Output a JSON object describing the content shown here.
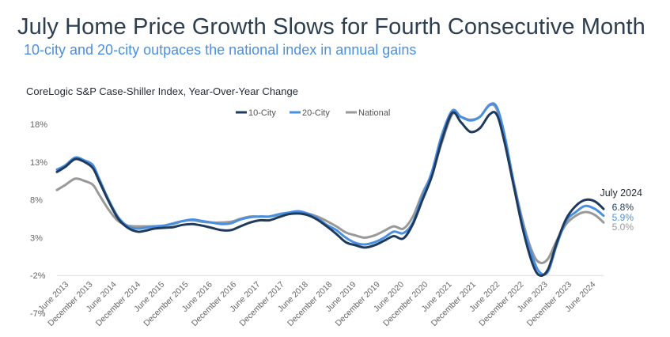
{
  "title": "July Home Price Growth Slows for Fourth Consecutive Month",
  "subtitle": "10-city and 20-city outpaces the national index in annual gains",
  "chart_data": {
    "type": "line",
    "title": "CoreLogic S&P Case-Shiller Index, Year-Over-Year Change",
    "xlabel": "",
    "ylabel": "",
    "ylim": [
      -7,
      20
    ],
    "y_ticks": [
      -7,
      -2,
      3,
      8,
      13,
      18
    ],
    "y_tick_labels": [
      "-7%",
      "-2%",
      "3%",
      "8%",
      "13%",
      "18%"
    ],
    "x_ticks": [
      {
        "label": "June 2013",
        "x": 2013.42
      },
      {
        "label": "December 2013",
        "x": 2013.92
      },
      {
        "label": "June 2014",
        "x": 2014.42
      },
      {
        "label": "December 2014",
        "x": 2014.92
      },
      {
        "label": "June 2015",
        "x": 2015.42
      },
      {
        "label": "December 2015",
        "x": 2015.92
      },
      {
        "label": "June 2016",
        "x": 2016.42
      },
      {
        "label": "December 2016",
        "x": 2016.92
      },
      {
        "label": "June 2017",
        "x": 2017.42
      },
      {
        "label": "December 2017",
        "x": 2017.92
      },
      {
        "label": "June 2018",
        "x": 2018.42
      },
      {
        "label": "December 2018",
        "x": 2018.92
      },
      {
        "label": "June 2019",
        "x": 2019.42
      },
      {
        "label": "December 2019",
        "x": 2019.92
      },
      {
        "label": "June 2020",
        "x": 2020.42
      },
      {
        "label": "December 2020",
        "x": 2020.92
      },
      {
        "label": "June 2021",
        "x": 2021.42
      },
      {
        "label": "December 2021",
        "x": 2021.92
      },
      {
        "label": "June 2022",
        "x": 2022.42
      },
      {
        "label": "December 2022",
        "x": 2022.92
      },
      {
        "label": "June 2023",
        "x": 2023.42
      },
      {
        "label": "December 2023",
        "x": 2023.92
      },
      {
        "label": "June 2024",
        "x": 2024.42
      }
    ],
    "legend": [
      "10-City",
      "20-City",
      "National"
    ],
    "series": [
      {
        "name": "10-City",
        "color": "#1f3a5c",
        "points": [
          [
            2013.17,
            11.7
          ],
          [
            2013.35,
            12.4
          ],
          [
            2013.55,
            13.4
          ],
          [
            2013.75,
            13.0
          ],
          [
            2013.92,
            12.2
          ],
          [
            2014.05,
            10.5
          ],
          [
            2014.25,
            7.8
          ],
          [
            2014.45,
            5.5
          ],
          [
            2014.65,
            4.3
          ],
          [
            2014.85,
            3.8
          ],
          [
            2015.0,
            3.9
          ],
          [
            2015.2,
            4.2
          ],
          [
            2015.4,
            4.3
          ],
          [
            2015.6,
            4.4
          ],
          [
            2015.8,
            4.7
          ],
          [
            2016.0,
            4.8
          ],
          [
            2016.2,
            4.6
          ],
          [
            2016.4,
            4.3
          ],
          [
            2016.6,
            4.0
          ],
          [
            2016.8,
            4.0
          ],
          [
            2017.0,
            4.5
          ],
          [
            2017.2,
            5.0
          ],
          [
            2017.4,
            5.3
          ],
          [
            2017.6,
            5.3
          ],
          [
            2017.8,
            5.7
          ],
          [
            2018.0,
            6.1
          ],
          [
            2018.2,
            6.2
          ],
          [
            2018.4,
            6.0
          ],
          [
            2018.6,
            5.4
          ],
          [
            2018.8,
            4.5
          ],
          [
            2019.0,
            3.5
          ],
          [
            2019.2,
            2.4
          ],
          [
            2019.4,
            2.0
          ],
          [
            2019.6,
            1.7
          ],
          [
            2019.8,
            2.0
          ],
          [
            2020.0,
            2.6
          ],
          [
            2020.2,
            3.2
          ],
          [
            2020.4,
            2.9
          ],
          [
            2020.6,
            4.8
          ],
          [
            2020.8,
            8.0
          ],
          [
            2021.0,
            11.2
          ],
          [
            2021.2,
            15.8
          ],
          [
            2021.42,
            19.5
          ],
          [
            2021.6,
            18.3
          ],
          [
            2021.8,
            17.0
          ],
          [
            2022.0,
            17.5
          ],
          [
            2022.2,
            19.3
          ],
          [
            2022.35,
            19.3
          ],
          [
            2022.5,
            16.0
          ],
          [
            2022.7,
            10.0
          ],
          [
            2022.9,
            4.0
          ],
          [
            2023.1,
            -0.5
          ],
          [
            2023.25,
            -2.0
          ],
          [
            2023.42,
            -1.2
          ],
          [
            2023.6,
            2.3
          ],
          [
            2023.8,
            5.5
          ],
          [
            2024.0,
            7.2
          ],
          [
            2024.2,
            8.0
          ],
          [
            2024.4,
            7.8
          ],
          [
            2024.58,
            6.8
          ]
        ]
      },
      {
        "name": "20-City",
        "color": "#4a90e2",
        "points": [
          [
            2013.17,
            12.0
          ],
          [
            2013.35,
            12.6
          ],
          [
            2013.55,
            13.6
          ],
          [
            2013.75,
            13.2
          ],
          [
            2013.92,
            12.6
          ],
          [
            2014.05,
            10.8
          ],
          [
            2014.25,
            8.0
          ],
          [
            2014.45,
            5.7
          ],
          [
            2014.65,
            4.5
          ],
          [
            2014.85,
            4.2
          ],
          [
            2015.0,
            4.3
          ],
          [
            2015.2,
            4.5
          ],
          [
            2015.4,
            4.6
          ],
          [
            2015.6,
            4.9
          ],
          [
            2015.8,
            5.2
          ],
          [
            2016.0,
            5.4
          ],
          [
            2016.2,
            5.2
          ],
          [
            2016.4,
            5.0
          ],
          [
            2016.6,
            4.8
          ],
          [
            2016.8,
            4.9
          ],
          [
            2017.0,
            5.4
          ],
          [
            2017.2,
            5.7
          ],
          [
            2017.4,
            5.8
          ],
          [
            2017.6,
            5.8
          ],
          [
            2017.8,
            6.1
          ],
          [
            2018.0,
            6.3
          ],
          [
            2018.2,
            6.5
          ],
          [
            2018.4,
            6.2
          ],
          [
            2018.6,
            5.6
          ],
          [
            2018.8,
            4.7
          ],
          [
            2019.0,
            4.0
          ],
          [
            2019.2,
            3.0
          ],
          [
            2019.4,
            2.3
          ],
          [
            2019.6,
            2.1
          ],
          [
            2019.8,
            2.4
          ],
          [
            2020.0,
            3.0
          ],
          [
            2020.2,
            3.8
          ],
          [
            2020.4,
            3.6
          ],
          [
            2020.6,
            5.0
          ],
          [
            2020.8,
            8.5
          ],
          [
            2021.0,
            11.8
          ],
          [
            2021.2,
            16.5
          ],
          [
            2021.42,
            19.8
          ],
          [
            2021.6,
            19.0
          ],
          [
            2021.8,
            18.5
          ],
          [
            2022.0,
            19.0
          ],
          [
            2022.2,
            20.6
          ],
          [
            2022.35,
            20.3
          ],
          [
            2022.5,
            17.0
          ],
          [
            2022.7,
            10.5
          ],
          [
            2022.9,
            4.6
          ],
          [
            2023.1,
            0.4
          ],
          [
            2023.25,
            -1.6
          ],
          [
            2023.42,
            -1.5
          ],
          [
            2023.6,
            2.0
          ],
          [
            2023.8,
            5.2
          ],
          [
            2024.0,
            6.4
          ],
          [
            2024.2,
            7.2
          ],
          [
            2024.4,
            6.8
          ],
          [
            2024.58,
            5.9
          ]
        ]
      },
      {
        "name": "National",
        "color": "#999999",
        "points": [
          [
            2013.17,
            9.3
          ],
          [
            2013.35,
            10.0
          ],
          [
            2013.55,
            10.8
          ],
          [
            2013.75,
            10.5
          ],
          [
            2013.92,
            10.0
          ],
          [
            2014.05,
            8.7
          ],
          [
            2014.25,
            6.7
          ],
          [
            2014.45,
            5.2
          ],
          [
            2014.65,
            4.6
          ],
          [
            2014.85,
            4.5
          ],
          [
            2015.0,
            4.5
          ],
          [
            2015.2,
            4.5
          ],
          [
            2015.4,
            4.6
          ],
          [
            2015.6,
            4.8
          ],
          [
            2015.8,
            5.2
          ],
          [
            2016.0,
            5.3
          ],
          [
            2016.2,
            5.1
          ],
          [
            2016.4,
            5.0
          ],
          [
            2016.6,
            5.0
          ],
          [
            2016.8,
            5.1
          ],
          [
            2017.0,
            5.5
          ],
          [
            2017.2,
            5.8
          ],
          [
            2017.4,
            5.8
          ],
          [
            2017.6,
            5.8
          ],
          [
            2017.8,
            6.0
          ],
          [
            2018.0,
            6.3
          ],
          [
            2018.2,
            6.4
          ],
          [
            2018.4,
            6.2
          ],
          [
            2018.6,
            5.8
          ],
          [
            2018.8,
            5.2
          ],
          [
            2019.0,
            4.5
          ],
          [
            2019.2,
            3.7
          ],
          [
            2019.4,
            3.3
          ],
          [
            2019.6,
            3.0
          ],
          [
            2019.8,
            3.3
          ],
          [
            2020.0,
            3.9
          ],
          [
            2020.2,
            4.5
          ],
          [
            2020.4,
            4.2
          ],
          [
            2020.6,
            5.8
          ],
          [
            2020.8,
            8.9
          ],
          [
            2021.0,
            11.5
          ],
          [
            2021.2,
            15.5
          ],
          [
            2021.42,
            19.3
          ],
          [
            2021.6,
            19.0
          ],
          [
            2021.8,
            18.6
          ],
          [
            2022.0,
            19.0
          ],
          [
            2022.2,
            20.5
          ],
          [
            2022.35,
            20.0
          ],
          [
            2022.5,
            16.5
          ],
          [
            2022.7,
            10.5
          ],
          [
            2022.9,
            5.0
          ],
          [
            2023.1,
            1.0
          ],
          [
            2023.25,
            -0.3
          ],
          [
            2023.42,
            0.2
          ],
          [
            2023.6,
            2.6
          ],
          [
            2023.8,
            4.8
          ],
          [
            2024.0,
            5.9
          ],
          [
            2024.2,
            6.4
          ],
          [
            2024.4,
            6.0
          ],
          [
            2024.58,
            5.0
          ]
        ]
      }
    ],
    "annotations": {
      "heading": "July 2024",
      "values": [
        {
          "label": "6.8%",
          "series": "10-City",
          "color": "#1f3a5c"
        },
        {
          "label": "5.9%",
          "series": "20-City",
          "color": "#4a90e2"
        },
        {
          "label": "5.0%",
          "series": "National",
          "color": "#999999"
        }
      ]
    }
  }
}
